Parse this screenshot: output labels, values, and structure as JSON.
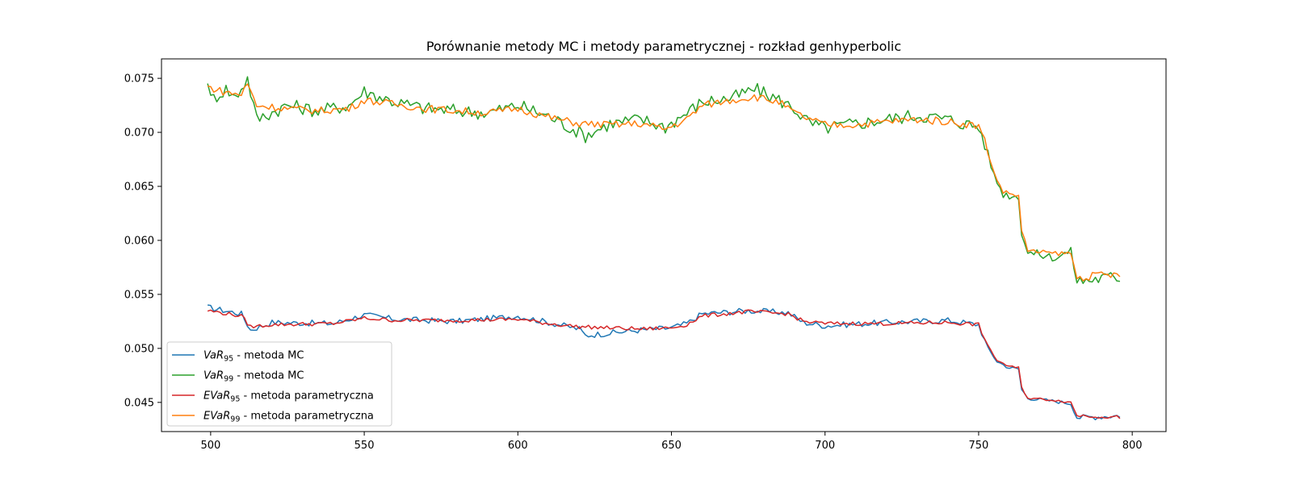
{
  "chart_data": {
    "type": "line",
    "title": "Porównanie metody MC i metody parametrycznej - rozkład genhyperbolic",
    "xlabel": "",
    "ylabel": "",
    "xlim": [
      484,
      811
    ],
    "ylim": [
      0.0423,
      0.0768
    ],
    "xticks": [
      500,
      550,
      600,
      650,
      700,
      750,
      800
    ],
    "yticks": [
      0.045,
      0.05,
      0.055,
      0.06,
      0.065,
      0.07,
      0.075
    ],
    "ytick_labels": [
      "0.045",
      "0.050",
      "0.055",
      "0.060",
      "0.065",
      "0.070",
      "0.075"
    ],
    "grid": false,
    "legend_position": "lower-left",
    "legend": [
      {
        "base": "VaR",
        "sub": "95",
        "suffix": " - metoda MC",
        "color": "#1f77b4"
      },
      {
        "base": "VaR",
        "sub": "99",
        "suffix": " - metoda MC",
        "color": "#2ca02c"
      },
      {
        "base": "EVaR",
        "sub": "95",
        "suffix": " - metoda parametryczna",
        "color": "#d62728"
      },
      {
        "base": "EVaR",
        "sub": "99",
        "suffix": " - metoda parametryczna",
        "color": "#ff7f0e"
      }
    ],
    "x_range": [
      499,
      796
    ],
    "series": [
      {
        "name": "VaR95 - metoda MC",
        "color": "#1f77b4",
        "points": [
          [
            499,
            0.0538
          ],
          [
            510,
            0.0532
          ],
          [
            513,
            0.0517
          ],
          [
            520,
            0.0524
          ],
          [
            540,
            0.0523
          ],
          [
            550,
            0.0531
          ],
          [
            560,
            0.0527
          ],
          [
            580,
            0.0525
          ],
          [
            600,
            0.053
          ],
          [
            610,
            0.0524
          ],
          [
            620,
            0.0518
          ],
          [
            622,
            0.0512
          ],
          [
            640,
            0.0517
          ],
          [
            650,
            0.0519
          ],
          [
            655,
            0.0523
          ],
          [
            660,
            0.0532
          ],
          [
            675,
            0.0535
          ],
          [
            688,
            0.0533
          ],
          [
            693,
            0.0524
          ],
          [
            700,
            0.0521
          ],
          [
            720,
            0.0524
          ],
          [
            740,
            0.0526
          ],
          [
            750,
            0.0522
          ],
          [
            753,
            0.05
          ],
          [
            756,
            0.0488
          ],
          [
            760,
            0.0482
          ],
          [
            763,
            0.0481
          ],
          [
            764,
            0.0462
          ],
          [
            766,
            0.0454
          ],
          [
            775,
            0.0451
          ],
          [
            780,
            0.0449
          ],
          [
            782,
            0.0436
          ],
          [
            790,
            0.0437
          ],
          [
            796,
            0.0438
          ]
        ]
      },
      {
        "name": "VaR99 - metoda MC",
        "color": "#2ca02c",
        "points": [
          [
            499,
            0.075
          ],
          [
            500,
            0.073
          ],
          [
            505,
            0.074
          ],
          [
            508,
            0.0732
          ],
          [
            512,
            0.075
          ],
          [
            515,
            0.0712
          ],
          [
            525,
            0.0725
          ],
          [
            535,
            0.072
          ],
          [
            545,
            0.0725
          ],
          [
            550,
            0.0738
          ],
          [
            560,
            0.0728
          ],
          [
            570,
            0.0722
          ],
          [
            580,
            0.072
          ],
          [
            590,
            0.0718
          ],
          [
            600,
            0.0725
          ],
          [
            610,
            0.0715
          ],
          [
            622,
            0.0697
          ],
          [
            630,
            0.0708
          ],
          [
            640,
            0.0712
          ],
          [
            648,
            0.0705
          ],
          [
            655,
            0.0718
          ],
          [
            660,
            0.0728
          ],
          [
            670,
            0.0732
          ],
          [
            677,
            0.074
          ],
          [
            685,
            0.073
          ],
          [
            690,
            0.0722
          ],
          [
            695,
            0.0708
          ],
          [
            700,
            0.0704
          ],
          [
            710,
            0.0708
          ],
          [
            720,
            0.0712
          ],
          [
            730,
            0.0716
          ],
          [
            740,
            0.0712
          ],
          [
            750,
            0.0705
          ],
          [
            752,
            0.069
          ],
          [
            755,
            0.066
          ],
          [
            758,
            0.0643
          ],
          [
            763,
            0.064
          ],
          [
            764,
            0.0608
          ],
          [
            766,
            0.0589
          ],
          [
            775,
            0.0584
          ],
          [
            780,
            0.059
          ],
          [
            782,
            0.0562
          ],
          [
            790,
            0.0565
          ],
          [
            796,
            0.0566
          ]
        ]
      },
      {
        "name": "EVaR95 - metoda parametryczna",
        "color": "#d62728",
        "points": [
          [
            499,
            0.0535
          ],
          [
            510,
            0.053
          ],
          [
            513,
            0.052
          ],
          [
            520,
            0.0522
          ],
          [
            540,
            0.0523
          ],
          [
            550,
            0.0528
          ],
          [
            560,
            0.0526
          ],
          [
            580,
            0.0526
          ],
          [
            600,
            0.0527
          ],
          [
            610,
            0.0523
          ],
          [
            620,
            0.052
          ],
          [
            640,
            0.0518
          ],
          [
            650,
            0.0519
          ],
          [
            655,
            0.0522
          ],
          [
            660,
            0.053
          ],
          [
            675,
            0.0534
          ],
          [
            688,
            0.0532
          ],
          [
            693,
            0.0525
          ],
          [
            700,
            0.0523
          ],
          [
            720,
            0.0523
          ],
          [
            740,
            0.0524
          ],
          [
            750,
            0.0522
          ],
          [
            753,
            0.0502
          ],
          [
            756,
            0.0489
          ],
          [
            760,
            0.0483
          ],
          [
            763,
            0.0482
          ],
          [
            764,
            0.0464
          ],
          [
            766,
            0.0454
          ],
          [
            775,
            0.0452
          ],
          [
            780,
            0.045
          ],
          [
            782,
            0.0438
          ],
          [
            790,
            0.0437
          ],
          [
            796,
            0.0436
          ]
        ]
      },
      {
        "name": "EVaR99 - metoda parametryczna",
        "color": "#ff7f0e",
        "points": [
          [
            499,
            0.0742
          ],
          [
            505,
            0.0737
          ],
          [
            510,
            0.0735
          ],
          [
            512,
            0.0745
          ],
          [
            515,
            0.0725
          ],
          [
            525,
            0.0722
          ],
          [
            535,
            0.072
          ],
          [
            545,
            0.0722
          ],
          [
            550,
            0.073
          ],
          [
            560,
            0.0726
          ],
          [
            570,
            0.0722
          ],
          [
            580,
            0.072
          ],
          [
            590,
            0.0718
          ],
          [
            600,
            0.0722
          ],
          [
            610,
            0.0714
          ],
          [
            620,
            0.0708
          ],
          [
            630,
            0.0707
          ],
          [
            640,
            0.0708
          ],
          [
            648,
            0.0703
          ],
          [
            655,
            0.0712
          ],
          [
            660,
            0.0725
          ],
          [
            670,
            0.073
          ],
          [
            677,
            0.0733
          ],
          [
            685,
            0.0728
          ],
          [
            690,
            0.0718
          ],
          [
            695,
            0.0712
          ],
          [
            700,
            0.0707
          ],
          [
            710,
            0.0707
          ],
          [
            720,
            0.071
          ],
          [
            730,
            0.0712
          ],
          [
            740,
            0.071
          ],
          [
            750,
            0.0706
          ],
          [
            752,
            0.0692
          ],
          [
            755,
            0.0662
          ],
          [
            758,
            0.0645
          ],
          [
            763,
            0.0641
          ],
          [
            764,
            0.061
          ],
          [
            766,
            0.059
          ],
          [
            775,
            0.0588
          ],
          [
            780,
            0.0588
          ],
          [
            782,
            0.0565
          ],
          [
            790,
            0.0568
          ],
          [
            796,
            0.0568
          ]
        ]
      }
    ]
  }
}
